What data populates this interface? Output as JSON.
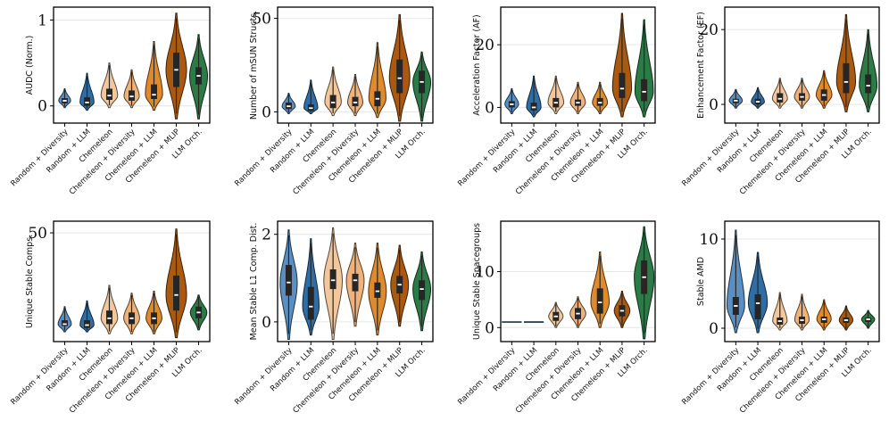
{
  "palette": [
    "#5b8fc1",
    "#2f6ea5",
    "#f3c79c",
    "#eeb27a",
    "#e08a2e",
    "#a95a10",
    "#2c7a45"
  ],
  "categories": [
    "Random + Diversity",
    "Random + LLM",
    "Chemeleon",
    "Chemeleon + Diversity",
    "Chemeleon + LLM",
    "Chemeleon + MLIP",
    "LLM Orch."
  ],
  "chart_data": [
    {
      "type": "violin",
      "ylabel": "AUDC (Norm.)",
      "ylim": [
        -0.2,
        1.15
      ],
      "yticks": [
        0,
        1
      ],
      "categories": [
        "Random + Diversity",
        "Random + LLM",
        "Chemeleon",
        "Chemeleon + Diversity",
        "Chemeleon + LLM",
        "Chemeleon + MLIP",
        "LLM Orch."
      ],
      "series": [
        {
          "min": -0.02,
          "max": 0.2,
          "q1": 0.03,
          "median": 0.06,
          "q3": 0.09,
          "spread": 0.35
        },
        {
          "min": -0.05,
          "max": 0.38,
          "q1": 0.0,
          "median": 0.04,
          "q3": 0.1,
          "spread": 0.5
        },
        {
          "min": -0.02,
          "max": 0.5,
          "q1": 0.07,
          "median": 0.12,
          "q3": 0.2,
          "spread": 0.7
        },
        {
          "min": -0.02,
          "max": 0.42,
          "q1": 0.06,
          "median": 0.11,
          "q3": 0.18,
          "spread": 0.6
        },
        {
          "min": -0.05,
          "max": 0.75,
          "q1": 0.08,
          "median": 0.13,
          "q3": 0.25,
          "spread": 0.75
        },
        {
          "min": -0.15,
          "max": 1.08,
          "q1": 0.22,
          "median": 0.42,
          "q3": 0.62,
          "spread": 1.0
        },
        {
          "min": -0.15,
          "max": 0.83,
          "q1": 0.25,
          "median": 0.35,
          "q3": 0.45,
          "spread": 0.8
        }
      ]
    },
    {
      "type": "violin",
      "ylabel": "Number of mSUN Structs.",
      "ylim": [
        -6,
        56
      ],
      "yticks": [
        0,
        50
      ],
      "categories": [
        "Random + Diversity",
        "Random + LLM",
        "Chemeleon",
        "Chemeleon + Diversity",
        "Chemeleon + LLM",
        "Chemeleon + MLIP",
        "LLM Orch."
      ],
      "series": [
        {
          "min": -1,
          "max": 10,
          "q1": 1.5,
          "median": 3,
          "q3": 5,
          "spread": 0.45
        },
        {
          "min": -1,
          "max": 17,
          "q1": 0.5,
          "median": 2,
          "q3": 4,
          "spread": 0.5
        },
        {
          "min": -2,
          "max": 24,
          "q1": 2,
          "median": 5,
          "q3": 9,
          "spread": 0.7
        },
        {
          "min": -2,
          "max": 20,
          "q1": 3,
          "median": 5,
          "q3": 8,
          "spread": 0.6
        },
        {
          "min": -3,
          "max": 37,
          "q1": 3,
          "median": 7,
          "q3": 11,
          "spread": 0.75
        },
        {
          "min": -5,
          "max": 52,
          "q1": 10,
          "median": 18,
          "q3": 28,
          "spread": 1.0
        },
        {
          "min": -5,
          "max": 32,
          "q1": 10,
          "median": 16,
          "q3": 22,
          "spread": 0.8
        }
      ]
    },
    {
      "type": "violin",
      "ylabel": "Acceleration Factor (AF)",
      "ylim": [
        -5,
        32
      ],
      "yticks": [
        0,
        20
      ],
      "categories": [
        "Random + Diversity",
        "Random + LLM",
        "Chemeleon",
        "Chemeleon + Diversity",
        "Chemeleon + LLM",
        "Chemeleon + MLIP",
        "LLM Orch."
      ],
      "series": [
        {
          "min": -2,
          "max": 6,
          "q1": 0,
          "median": 1,
          "q3": 2,
          "spread": 0.5
        },
        {
          "min": -3,
          "max": 10,
          "q1": -1,
          "median": 0,
          "q3": 1.5,
          "spread": 0.55
        },
        {
          "min": -2,
          "max": 10,
          "q1": 0,
          "median": 1.5,
          "q3": 3,
          "spread": 0.65
        },
        {
          "min": -2,
          "max": 8,
          "q1": 0.5,
          "median": 1.5,
          "q3": 2.5,
          "spread": 0.6
        },
        {
          "min": -2,
          "max": 8,
          "q1": 0.5,
          "median": 1.5,
          "q3": 3,
          "spread": 0.6
        },
        {
          "min": -3,
          "max": 30,
          "q1": 3,
          "median": 6,
          "q3": 11,
          "spread": 0.9
        },
        {
          "min": -3,
          "max": 28,
          "q1": 2,
          "median": 5,
          "q3": 9,
          "spread": 0.85
        }
      ]
    },
    {
      "type": "violin",
      "ylabel": "Enhancement Factor (EF)",
      "ylim": [
        -5,
        26
      ],
      "yticks": [
        0,
        20
      ],
      "categories": [
        "Random + Diversity",
        "Random + LLM",
        "Chemeleon",
        "Chemeleon + Diversity",
        "Chemeleon + LLM",
        "Chemeleon + MLIP",
        "LLM Orch."
      ],
      "series": [
        {
          "min": -1,
          "max": 4,
          "q1": 0.3,
          "median": 1,
          "q3": 1.5,
          "spread": 0.45
        },
        {
          "min": -1,
          "max": 4.5,
          "q1": 0,
          "median": 0.7,
          "q3": 1.5,
          "spread": 0.45
        },
        {
          "min": -1,
          "max": 7,
          "q1": 0.5,
          "median": 1.5,
          "q3": 3,
          "spread": 0.6
        },
        {
          "min": -1,
          "max": 7,
          "q1": 1,
          "median": 2,
          "q3": 3,
          "spread": 0.6
        },
        {
          "min": -1,
          "max": 9,
          "q1": 1,
          "median": 2.5,
          "q3": 4,
          "spread": 0.65
        },
        {
          "min": -2,
          "max": 24,
          "q1": 3,
          "median": 6,
          "q3": 11,
          "spread": 0.9
        },
        {
          "min": -2,
          "max": 20,
          "q1": 3,
          "median": 5,
          "q3": 8,
          "spread": 0.8
        }
      ]
    },
    {
      "type": "violin",
      "ylabel": "Unique Stable Comps.",
      "ylim": [
        -6,
        56
      ],
      "yticks": [
        50
      ],
      "categories": [
        "Random + Diversity",
        "Random + LLM",
        "Chemeleon",
        "Chemeleon + Diversity",
        "Chemeleon + LLM",
        "Chemeleon + MLIP",
        "LLM Orch."
      ],
      "series": [
        {
          "min": -1,
          "max": 12,
          "q1": 2,
          "median": 3,
          "q3": 5,
          "spread": 0.45
        },
        {
          "min": -1,
          "max": 15,
          "q1": 1,
          "median": 2.5,
          "q3": 5,
          "spread": 0.5
        },
        {
          "min": -2,
          "max": 23,
          "q1": 3,
          "median": 6,
          "q3": 10,
          "spread": 0.7
        },
        {
          "min": -2,
          "max": 19,
          "q1": 3,
          "median": 6,
          "q3": 9,
          "spread": 0.65
        },
        {
          "min": -2,
          "max": 20,
          "q1": 3,
          "median": 6,
          "q3": 9,
          "spread": 0.65
        },
        {
          "min": -4,
          "max": 52,
          "q1": 10,
          "median": 18,
          "q3": 28,
          "spread": 1.0
        },
        {
          "min": 0,
          "max": 18,
          "q1": 6,
          "median": 9,
          "q3": 12,
          "spread": 0.7
        }
      ]
    },
    {
      "type": "violin",
      "ylabel": "Mean Stable L1 Comp. Dist.",
      "ylim": [
        -0.45,
        2.3
      ],
      "yticks": [
        0,
        2
      ],
      "categories": [
        "Random + Diversity",
        "Random + LLM",
        "Chemeleon",
        "Chemeleon + Diversity",
        "Chemeleon + LLM",
        "Chemeleon + MLIP",
        "LLM Orch."
      ],
      "series": [
        {
          "min": -0.4,
          "max": 2.1,
          "q1": 0.6,
          "median": 0.9,
          "q3": 1.3,
          "spread": 0.75
        },
        {
          "min": -0.3,
          "max": 1.9,
          "q1": 0.05,
          "median": 0.35,
          "q3": 0.8,
          "spread": 0.7
        },
        {
          "min": -0.4,
          "max": 2.15,
          "q1": 0.75,
          "median": 0.95,
          "q3": 1.2,
          "spread": 0.85
        },
        {
          "min": -0.1,
          "max": 1.8,
          "q1": 0.7,
          "median": 0.95,
          "q3": 1.1,
          "spread": 0.8
        },
        {
          "min": -0.3,
          "max": 1.8,
          "q1": 0.55,
          "median": 0.7,
          "q3": 0.9,
          "spread": 0.8
        },
        {
          "min": -0.1,
          "max": 1.75,
          "q1": 0.65,
          "median": 0.85,
          "q3": 1.05,
          "spread": 0.8
        },
        {
          "min": -0.2,
          "max": 1.6,
          "q1": 0.5,
          "median": 0.75,
          "q3": 0.95,
          "spread": 0.8
        }
      ]
    },
    {
      "type": "violin",
      "ylabel": "Unique Stable Spacegroups",
      "ylim": [
        -2.5,
        19
      ],
      "yticks": [
        0,
        10
      ],
      "categories": [
        "Random + Diversity",
        "Random + LLM",
        "Chemeleon",
        "Chemeleon + Diversity",
        "Chemeleon + LLM",
        "Chemeleon + MLIP",
        "LLM Orch."
      ],
      "series": [
        {
          "min": 1,
          "max": 1,
          "q1": 1,
          "median": 1,
          "q3": 1,
          "spread": 0.0
        },
        {
          "min": 1,
          "max": 1,
          "q1": 1,
          "median": 1,
          "q3": 1,
          "spread": 0.0
        },
        {
          "min": 0,
          "max": 4.5,
          "q1": 1.2,
          "median": 2,
          "q3": 2.8,
          "spread": 0.55
        },
        {
          "min": 0,
          "max": 5.5,
          "q1": 1.5,
          "median": 2.5,
          "q3": 3.5,
          "spread": 0.65
        },
        {
          "min": 0,
          "max": 13.5,
          "q1": 2.5,
          "median": 4.5,
          "q3": 7,
          "spread": 0.85
        },
        {
          "min": 0,
          "max": 6.5,
          "q1": 2,
          "median": 3,
          "q3": 4,
          "spread": 0.65
        },
        {
          "min": -2,
          "max": 18,
          "q1": 6,
          "median": 9,
          "q3": 12,
          "spread": 0.95
        }
      ]
    },
    {
      "type": "violin",
      "ylabel": "Stable AMD",
      "ylim": [
        -1.5,
        12
      ],
      "yticks": [
        0,
        10
      ],
      "categories": [
        "Random + Diversity",
        "Random + LLM",
        "Chemeleon",
        "Chemeleon + Diversity",
        "Chemeleon + LLM",
        "Chemeleon + MLIP",
        "LLM Orch."
      ],
      "series": [
        {
          "min": -0.5,
          "max": 11,
          "q1": 1.5,
          "median": 2.5,
          "q3": 3.5,
          "spread": 0.8
        },
        {
          "min": -0.5,
          "max": 8.5,
          "q1": 1,
          "median": 2.8,
          "q3": 3.8,
          "spread": 0.9
        },
        {
          "min": -0.2,
          "max": 4,
          "q1": 0.4,
          "median": 0.8,
          "q3": 1.2,
          "spread": 0.55
        },
        {
          "min": -0.2,
          "max": 3.8,
          "q1": 0.5,
          "median": 0.9,
          "q3": 1.3,
          "spread": 0.55
        },
        {
          "min": -0.2,
          "max": 3.2,
          "q1": 0.6,
          "median": 1.0,
          "q3": 1.3,
          "spread": 0.55
        },
        {
          "min": -0.2,
          "max": 2.5,
          "q1": 0.6,
          "median": 0.9,
          "q3": 1.2,
          "spread": 0.5
        },
        {
          "min": 0,
          "max": 2,
          "q1": 0.7,
          "median": 1.0,
          "q3": 1.2,
          "spread": 0.45
        }
      ]
    }
  ]
}
